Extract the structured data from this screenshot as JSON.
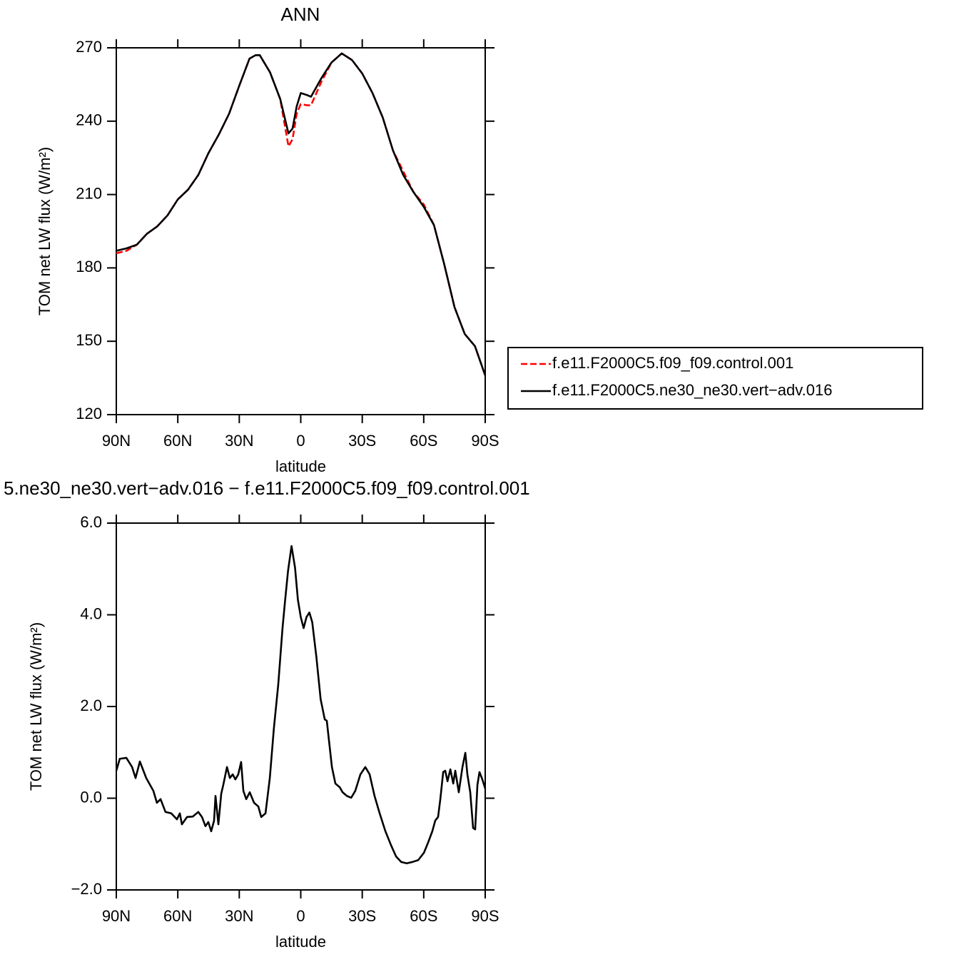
{
  "chart_data": [
    {
      "type": "line",
      "title": "ANN",
      "xlabel": "latitude",
      "ylabel": "TOM net LW flux (W/m²)",
      "x": [
        90,
        85,
        80,
        75,
        70,
        65,
        60,
        55,
        50,
        45,
        40,
        35,
        30,
        25,
        22,
        20,
        15,
        10,
        6,
        4,
        2,
        0,
        -3,
        -5,
        -10,
        -15,
        -20,
        -25,
        -30,
        -35,
        -40,
        -45,
        -50,
        -55,
        -60,
        -65,
        -70,
        -75,
        -80,
        -85,
        -90
      ],
      "series": [
        {
          "name": "f.e11.F2000C5.f09_f09.control.001",
          "color": "#ff0000",
          "line_style": "dashed",
          "values": [
            186,
            187,
            189.5,
            194,
            197,
            201.5,
            208,
            212,
            218,
            227,
            234.5,
            243,
            254.5,
            265.6,
            267,
            267,
            260,
            249,
            229.7,
            232.6,
            243,
            247,
            246.5,
            246.5,
            256,
            264,
            267.7,
            265,
            259.5,
            251.5,
            241.5,
            228,
            219.5,
            211,
            206,
            197.5,
            181.5,
            164,
            153,
            148,
            136
          ]
        },
        {
          "name": "f.e11.F2000C5.ne30_ne30.vert−adv.016",
          "color": "#000000",
          "line_style": "solid",
          "values": [
            187,
            188,
            189.5,
            194,
            197,
            201.5,
            208,
            212,
            218,
            227,
            234.5,
            243,
            254.5,
            265.6,
            267,
            267,
            260,
            249,
            235,
            237,
            246,
            251.5,
            250.7,
            250,
            257.5,
            264,
            267.7,
            265,
            259.5,
            251.5,
            241.5,
            228,
            218,
            211,
            205,
            197.5,
            181.5,
            164,
            153,
            148,
            136
          ]
        }
      ],
      "xlim": [
        90,
        -90
      ],
      "xticks": [
        {
          "value": 90,
          "label": "90N"
        },
        {
          "value": 60,
          "label": "60N"
        },
        {
          "value": 30,
          "label": "30N"
        },
        0,
        {
          "value": -30,
          "label": "30S"
        },
        {
          "value": -60,
          "label": "60S"
        },
        {
          "value": -90,
          "label": "90S"
        }
      ],
      "ylim": [
        120,
        270
      ],
      "yticks": [
        120,
        150,
        180,
        210,
        240,
        270
      ]
    },
    {
      "type": "line",
      "title": "5.ne30_ne30.vert−adv.016 − f.e11.F2000C5.f09_f09.control.001",
      "xlabel": "latitude",
      "ylabel": "TOM net LW flux (W/m²)",
      "x": [
        90,
        88.3,
        85.1,
        82.3,
        80.6,
        78.5,
        75.4,
        71.9,
        70.2,
        68.4,
        66,
        63.2,
        60.4,
        59,
        58,
        55.5,
        52.7,
        50,
        48.2,
        46.5,
        45.1,
        43.7,
        42.3,
        41.6,
        40.2,
        38.8,
        37.8,
        36,
        34.6,
        33.2,
        31.9,
        30.5,
        29.1,
        28,
        26.6,
        24.9,
        22.8,
        20.7,
        19.3,
        17.2,
        15.1,
        13.1,
        11,
        8.9,
        7.6,
        6.2,
        4.5,
        2.8,
        1.4,
        0,
        -1.4,
        -2.8,
        -4.2,
        -5.6,
        -7.6,
        -9.7,
        -11.7,
        -12.7,
        -15.2,
        -16.9,
        -19,
        -20.4,
        -22.5,
        -24.6,
        -26.6,
        -29.1,
        -31.5,
        -33.6,
        -36,
        -38.5,
        -41.3,
        -44.1,
        -46.5,
        -49,
        -51.7,
        -54.5,
        -57.3,
        -60.1,
        -62.2,
        -64.2,
        -65.6,
        -67,
        -68.1,
        -69.5,
        -70.5,
        -71.6,
        -73,
        -74.4,
        -75.4,
        -77.1,
        -78.9,
        -80.3,
        -81.3,
        -82.7,
        -84.1,
        -85.1,
        -86.2,
        -87.2,
        -88.6,
        -90
      ],
      "series": [
        {
          "color": "#000000",
          "line_style": "solid",
          "values": [
            0.6,
            0.86,
            0.88,
            0.68,
            0.44,
            0.8,
            0.44,
            0.16,
            -0.1,
            -0.02,
            -0.3,
            -0.33,
            -0.46,
            -0.33,
            -0.57,
            -0.41,
            -0.4,
            -0.3,
            -0.41,
            -0.61,
            -0.52,
            -0.72,
            -0.49,
            0.05,
            -0.57,
            0.1,
            0.29,
            0.68,
            0.44,
            0.52,
            0.41,
            0.52,
            0.79,
            0.16,
            -0.02,
            0.13,
            -0.1,
            -0.18,
            -0.41,
            -0.33,
            0.44,
            1.53,
            2.47,
            3.71,
            4.33,
            4.96,
            5.5,
            5.03,
            4.33,
            3.95,
            3.71,
            3.95,
            4.05,
            3.84,
            3.09,
            2.16,
            1.72,
            1.69,
            0.68,
            0.32,
            0.24,
            0.13,
            0.05,
            0.01,
            0.16,
            0.52,
            0.68,
            0.52,
            0.05,
            -0.33,
            -0.72,
            -1.03,
            -1.27,
            -1.39,
            -1.42,
            -1.39,
            -1.35,
            -1.19,
            -0.96,
            -0.72,
            -0.49,
            -0.41,
            -0.02,
            0.57,
            0.6,
            0.37,
            0.63,
            0.32,
            0.6,
            0.13,
            0.68,
            0.99,
            0.52,
            0.13,
            -0.65,
            -0.68,
            0.29,
            0.57,
            0.41,
            0.21
          ]
        }
      ],
      "xlim": [
        90,
        -90
      ],
      "xticks": [
        {
          "value": 90,
          "label": "90N"
        },
        {
          "value": 60,
          "label": "60N"
        },
        {
          "value": 30,
          "label": "30N"
        },
        0,
        {
          "value": -30,
          "label": "30S"
        },
        {
          "value": -60,
          "label": "60S"
        },
        {
          "value": -90,
          "label": "90S"
        }
      ],
      "ylim": [
        -2,
        6
      ],
      "yticks": [
        {
          "value": -2,
          "label": "−2.0"
        },
        {
          "value": 0,
          "label": "0.0"
        },
        {
          "value": 2,
          "label": "2.0"
        },
        {
          "value": 4,
          "label": "4.0"
        },
        {
          "value": 6,
          "label": "6.0"
        }
      ]
    }
  ]
}
